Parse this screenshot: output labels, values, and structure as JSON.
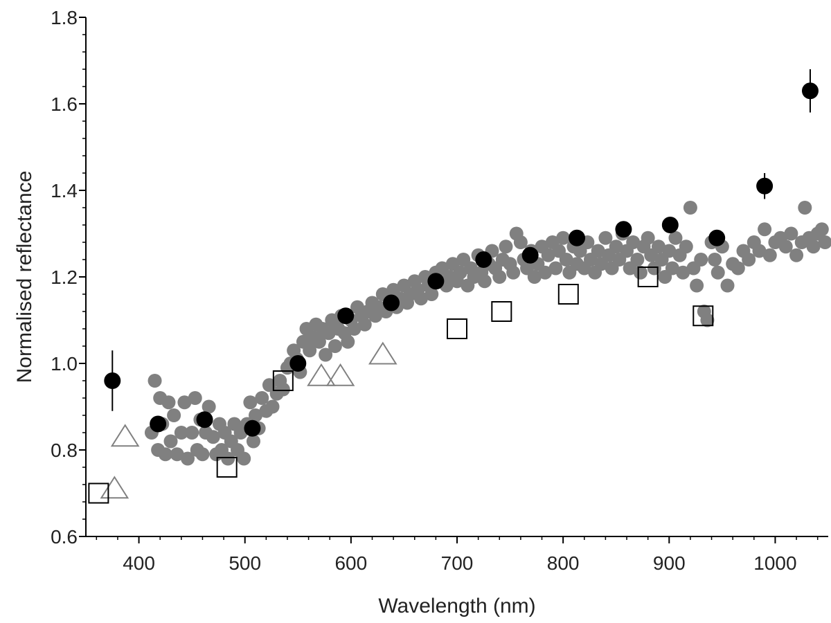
{
  "chart_data": {
    "type": "scatter",
    "title": "",
    "xlabel": "Wavelength (nm)",
    "ylabel": "Normalised reflectance",
    "xlim": [
      350,
      1050
    ],
    "ylim": [
      0.6,
      1.8
    ],
    "xticks": [
      400,
      500,
      600,
      700,
      800,
      900,
      1000
    ],
    "yticks": [
      0.6,
      0.8,
      1.0,
      1.2,
      1.4,
      1.6,
      1.8
    ],
    "xtick_labels": [
      "400",
      "500",
      "600",
      "700",
      "800",
      "900",
      "1000"
    ],
    "ytick_labels": [
      "0.6",
      "0.8",
      "1.0",
      "1.2",
      "1.4",
      "1.6",
      "1.8"
    ],
    "grid": false,
    "colors": {
      "gray_points": "#808080",
      "black_points": "#000000",
      "open_markers": "#000000",
      "triangles": "#808080",
      "axis": "#000000"
    },
    "series": [
      {
        "name": "gray-spectrum",
        "marker": "filled-circle",
        "points": [
          [
            412,
            0.84
          ],
          [
            415,
            0.96
          ],
          [
            418,
            0.8
          ],
          [
            420,
            0.92
          ],
          [
            422,
            0.86
          ],
          [
            425,
            0.79
          ],
          [
            428,
            0.91
          ],
          [
            430,
            0.82
          ],
          [
            433,
            0.88
          ],
          [
            436,
            0.79
          ],
          [
            440,
            0.84
          ],
          [
            443,
            0.91
          ],
          [
            446,
            0.78
          ],
          [
            450,
            0.84
          ],
          [
            453,
            0.92
          ],
          [
            455,
            0.8
          ],
          [
            458,
            0.87
          ],
          [
            460,
            0.79
          ],
          [
            463,
            0.84
          ],
          [
            466,
            0.9
          ],
          [
            470,
            0.83
          ],
          [
            473,
            0.79
          ],
          [
            476,
            0.86
          ],
          [
            478,
            0.8
          ],
          [
            481,
            0.84
          ],
          [
            484,
            0.78
          ],
          [
            487,
            0.82
          ],
          [
            490,
            0.86
          ],
          [
            493,
            0.8
          ],
          [
            496,
            0.84
          ],
          [
            499,
            0.78
          ],
          [
            502,
            0.86
          ],
          [
            505,
            0.91
          ],
          [
            508,
            0.82
          ],
          [
            510,
            0.88
          ],
          [
            513,
            0.85
          ],
          [
            516,
            0.92
          ],
          [
            520,
            0.89
          ],
          [
            523,
            0.95
          ],
          [
            526,
            0.9
          ],
          [
            530,
            0.93
          ],
          [
            533,
            0.96
          ],
          [
            536,
            0.94
          ],
          [
            540,
            0.99
          ],
          [
            543,
            1.0
          ],
          [
            546,
            1.03
          ],
          [
            549,
            1.01
          ],
          [
            552,
            0.98
          ],
          [
            555,
            1.05
          ],
          [
            558,
            1.08
          ],
          [
            561,
            1.03
          ],
          [
            564,
            1.06
          ],
          [
            567,
            1.09
          ],
          [
            570,
            1.05
          ],
          [
            573,
            1.08
          ],
          [
            576,
            1.02
          ],
          [
            579,
            1.07
          ],
          [
            582,
            1.1
          ],
          [
            585,
            1.04
          ],
          [
            588,
            1.08
          ],
          [
            591,
            1.11
          ],
          [
            594,
            1.07
          ],
          [
            597,
            1.05
          ],
          [
            600,
            1.1
          ],
          [
            603,
            1.08
          ],
          [
            606,
            1.13
          ],
          [
            610,
            1.11
          ],
          [
            613,
            1.09
          ],
          [
            616,
            1.12
          ],
          [
            620,
            1.14
          ],
          [
            623,
            1.11
          ],
          [
            626,
            1.13
          ],
          [
            630,
            1.16
          ],
          [
            633,
            1.12
          ],
          [
            636,
            1.15
          ],
          [
            640,
            1.17
          ],
          [
            643,
            1.13
          ],
          [
            646,
            1.15
          ],
          [
            650,
            1.18
          ],
          [
            653,
            1.14
          ],
          [
            656,
            1.16
          ],
          [
            660,
            1.19
          ],
          [
            663,
            1.17
          ],
          [
            666,
            1.15
          ],
          [
            670,
            1.2
          ],
          [
            673,
            1.18
          ],
          [
            676,
            1.16
          ],
          [
            680,
            1.21
          ],
          [
            683,
            1.19
          ],
          [
            686,
            1.22
          ],
          [
            690,
            1.18
          ],
          [
            693,
            1.2
          ],
          [
            696,
            1.23
          ],
          [
            700,
            1.19
          ],
          [
            703,
            1.21
          ],
          [
            706,
            1.24
          ],
          [
            710,
            1.18
          ],
          [
            713,
            1.22
          ],
          [
            716,
            1.2
          ],
          [
            720,
            1.25
          ],
          [
            723,
            1.21
          ],
          [
            726,
            1.19
          ],
          [
            730,
            1.23
          ],
          [
            733,
            1.26
          ],
          [
            736,
            1.22
          ],
          [
            740,
            1.2
          ],
          [
            743,
            1.24
          ],
          [
            746,
            1.27
          ],
          [
            750,
            1.23
          ],
          [
            753,
            1.21
          ],
          [
            756,
            1.3
          ],
          [
            760,
            1.28
          ],
          [
            763,
            1.24
          ],
          [
            766,
            1.22
          ],
          [
            770,
            1.26
          ],
          [
            773,
            1.2
          ],
          [
            776,
            1.23
          ],
          [
            780,
            1.27
          ],
          [
            783,
            1.21
          ],
          [
            786,
            1.25
          ],
          [
            790,
            1.28
          ],
          [
            793,
            1.22
          ],
          [
            796,
            1.26
          ],
          [
            800,
            1.29
          ],
          [
            803,
            1.24
          ],
          [
            806,
            1.21
          ],
          [
            810,
            1.27
          ],
          [
            813,
            1.23
          ],
          [
            816,
            1.26
          ],
          [
            820,
            1.22
          ],
          [
            823,
            1.28
          ],
          [
            826,
            1.24
          ],
          [
            830,
            1.21
          ],
          [
            833,
            1.26
          ],
          [
            836,
            1.23
          ],
          [
            840,
            1.29
          ],
          [
            843,
            1.25
          ],
          [
            846,
            1.22
          ],
          [
            850,
            1.27
          ],
          [
            853,
            1.24
          ],
          [
            856,
            1.3
          ],
          [
            860,
            1.26
          ],
          [
            863,
            1.22
          ],
          [
            866,
            1.28
          ],
          [
            870,
            1.24
          ],
          [
            873,
            1.21
          ],
          [
            876,
            1.27
          ],
          [
            880,
            1.29
          ],
          [
            883,
            1.25
          ],
          [
            886,
            1.22
          ],
          [
            890,
            1.27
          ],
          [
            893,
            1.24
          ],
          [
            896,
            1.2
          ],
          [
            900,
            1.26
          ],
          [
            903,
            1.22
          ],
          [
            906,
            1.29
          ],
          [
            910,
            1.25
          ],
          [
            913,
            1.21
          ],
          [
            916,
            1.27
          ],
          [
            920,
            1.36
          ],
          [
            923,
            1.22
          ],
          [
            926,
            1.18
          ],
          [
            930,
            1.24
          ],
          [
            933,
            1.12
          ],
          [
            936,
            1.1
          ],
          [
            940,
            1.28
          ],
          [
            943,
            1.24
          ],
          [
            946,
            1.21
          ],
          [
            950,
            1.27
          ],
          [
            955,
            1.18
          ],
          [
            960,
            1.23
          ],
          [
            965,
            1.22
          ],
          [
            970,
            1.26
          ],
          [
            975,
            1.24
          ],
          [
            980,
            1.28
          ],
          [
            985,
            1.26
          ],
          [
            990,
            1.31
          ],
          [
            995,
            1.25
          ],
          [
            1000,
            1.28
          ],
          [
            1005,
            1.29
          ],
          [
            1010,
            1.27
          ],
          [
            1015,
            1.3
          ],
          [
            1020,
            1.25
          ],
          [
            1025,
            1.28
          ],
          [
            1028,
            1.36
          ],
          [
            1032,
            1.29
          ],
          [
            1036,
            1.27
          ],
          [
            1040,
            1.3
          ],
          [
            1044,
            1.31
          ],
          [
            1047,
            1.28
          ]
        ]
      },
      {
        "name": "black-circles",
        "marker": "filled-circle-errorbar",
        "points": [
          [
            375,
            0.96,
            0.07
          ],
          [
            418,
            0.86,
            0
          ],
          [
            462,
            0.87,
            0
          ],
          [
            507,
            0.85,
            0
          ],
          [
            550,
            1.0,
            0
          ],
          [
            595,
            1.11,
            0
          ],
          [
            638,
            1.14,
            0
          ],
          [
            680,
            1.19,
            0
          ],
          [
            725,
            1.24,
            0
          ],
          [
            769,
            1.25,
            0
          ],
          [
            813,
            1.29,
            0
          ],
          [
            857,
            1.31,
            0
          ],
          [
            901,
            1.32,
            0
          ],
          [
            945,
            1.29,
            0
          ],
          [
            990,
            1.41,
            0.03
          ],
          [
            1033,
            1.63,
            0.05
          ]
        ]
      },
      {
        "name": "open-squares",
        "marker": "open-square",
        "points": [
          [
            362,
            0.7
          ],
          [
            483,
            0.76
          ],
          [
            536,
            0.96
          ],
          [
            700,
            1.08
          ],
          [
            742,
            1.12
          ],
          [
            805,
            1.16
          ],
          [
            880,
            1.2
          ],
          [
            932,
            1.11
          ]
        ]
      },
      {
        "name": "open-triangles",
        "marker": "open-triangle",
        "points": [
          [
            387,
            0.83
          ],
          [
            377,
            0.71
          ],
          [
            572,
            0.97
          ],
          [
            590,
            0.97
          ],
          [
            630,
            1.02
          ]
        ]
      }
    ]
  }
}
